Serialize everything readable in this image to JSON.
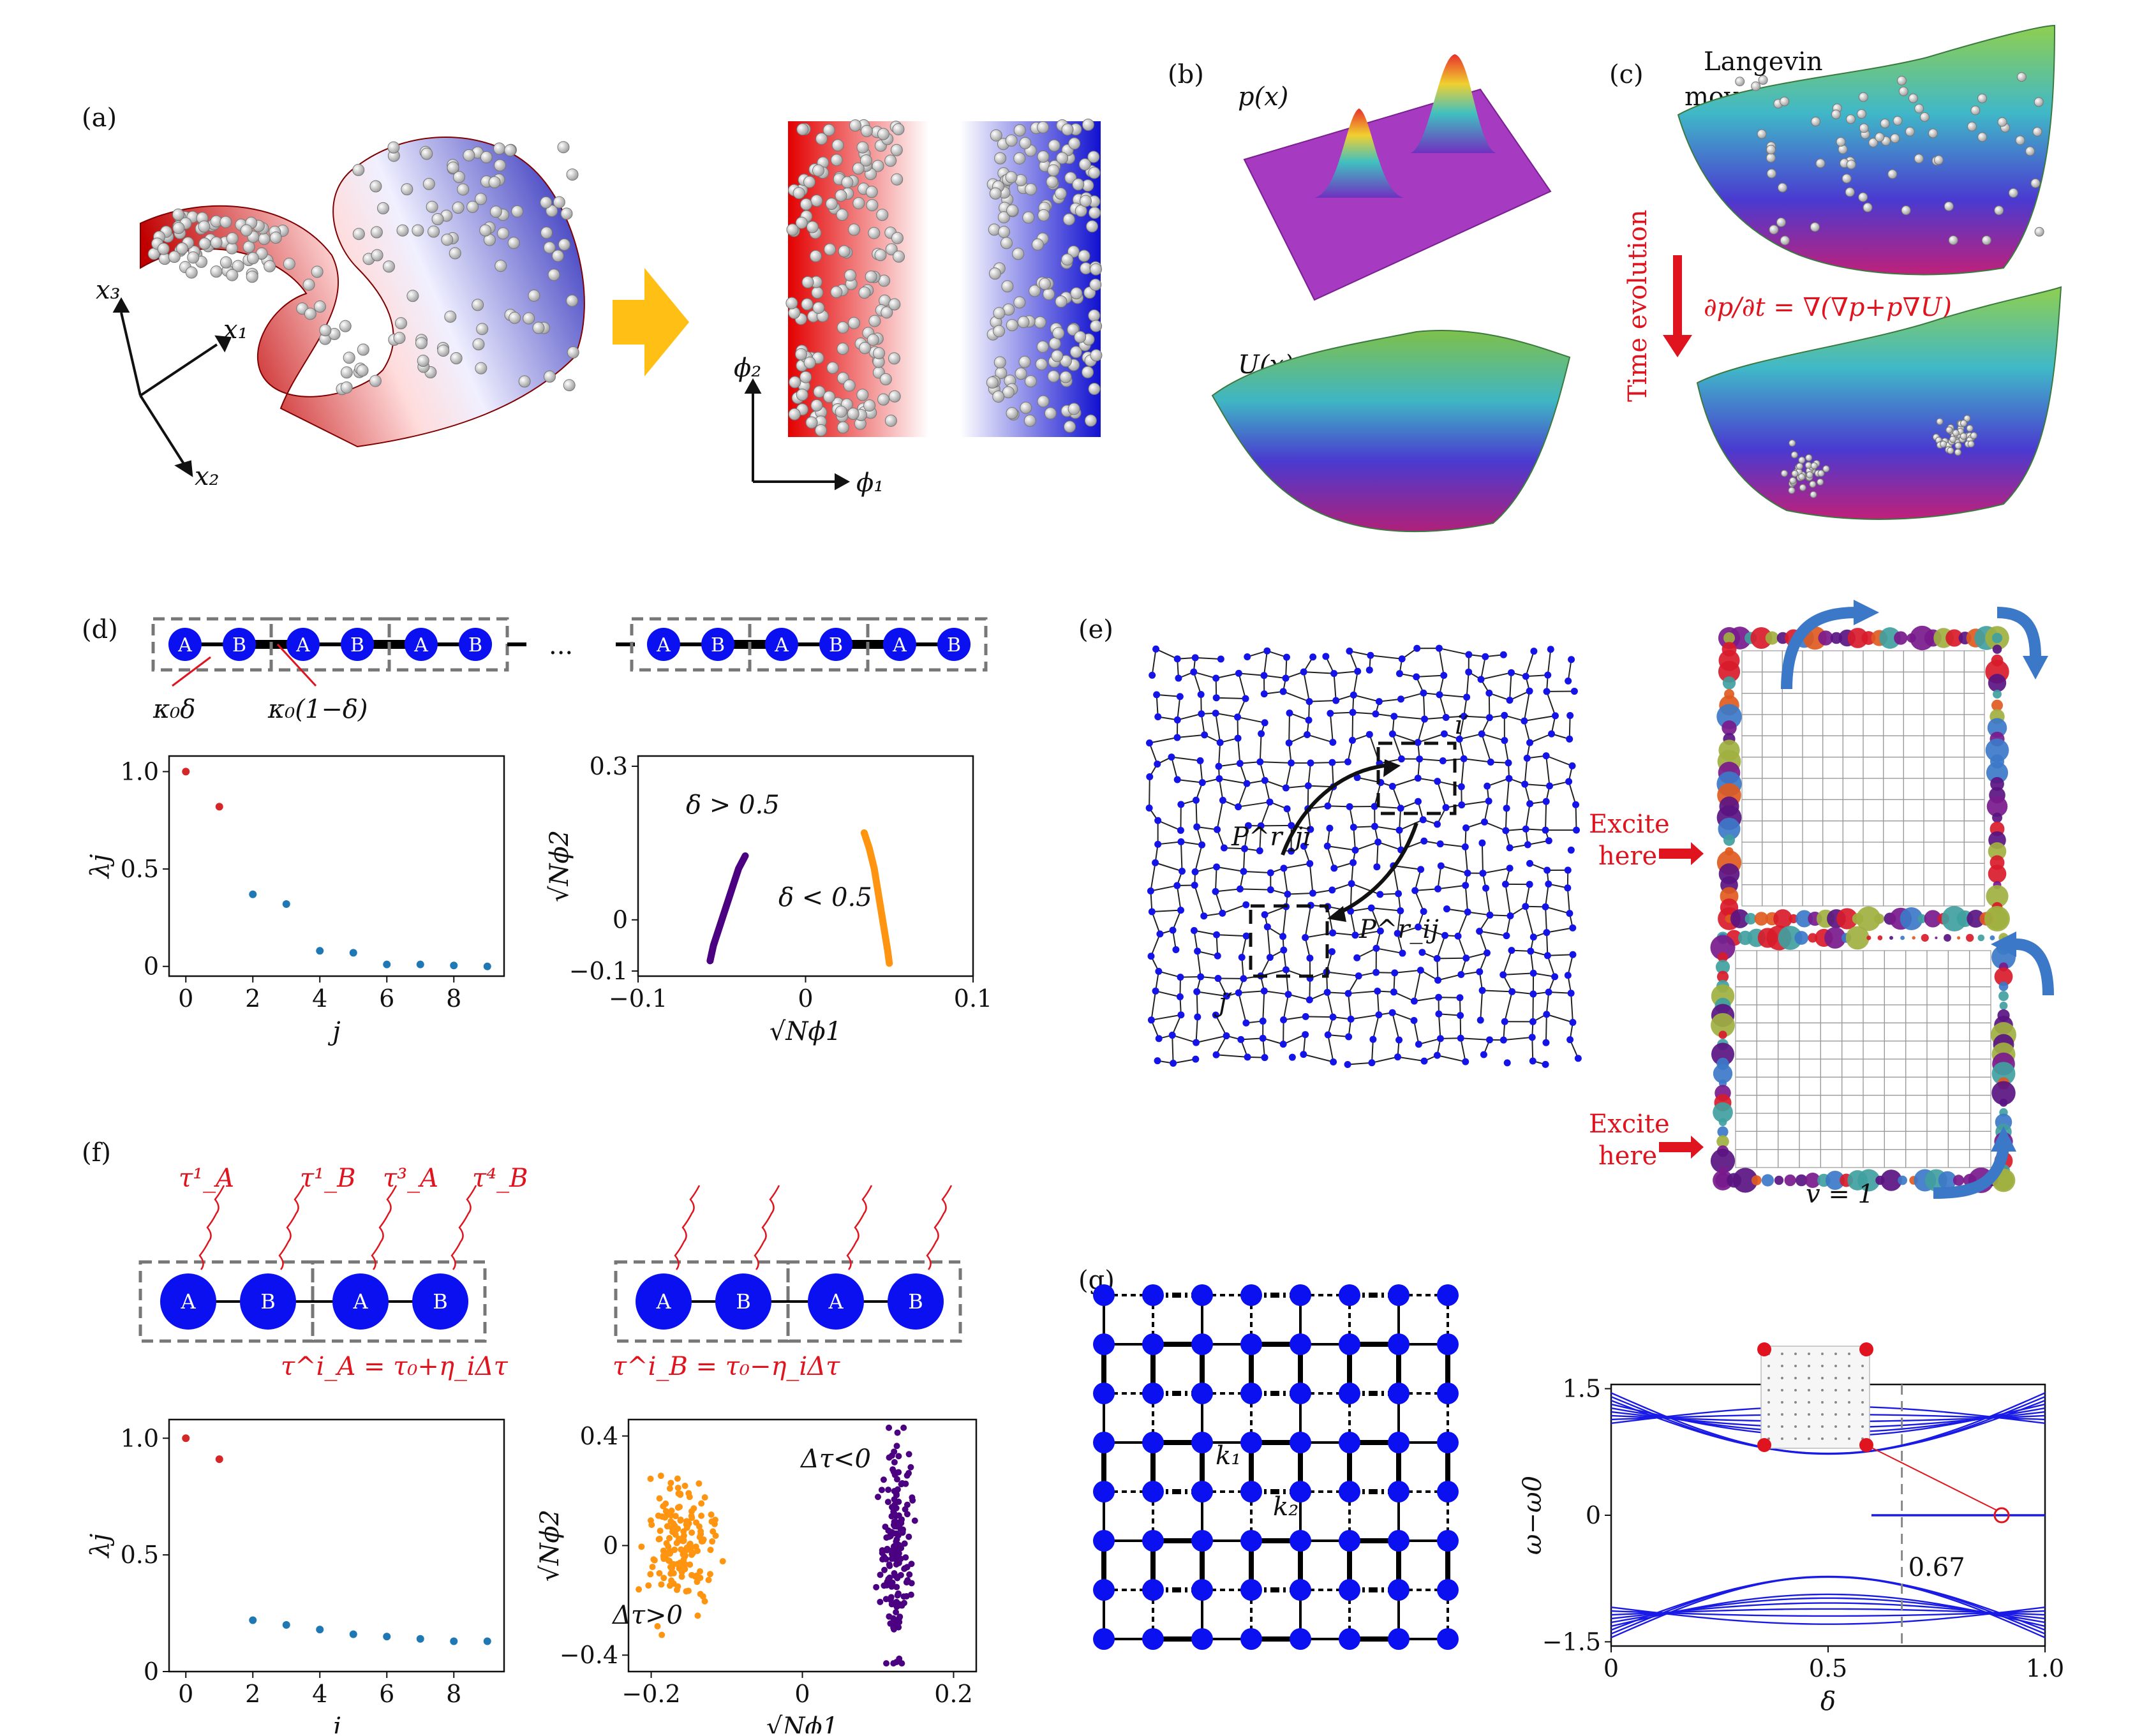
{
  "panels": {
    "a": {
      "label": "(a)",
      "axes": [
        "x₃",
        "x₁",
        "x₂"
      ],
      "embed_axes": [
        "ϕ₂",
        "ϕ₁"
      ]
    },
    "b": {
      "label": "(b)",
      "top": "p(x)",
      "bottom": "U(x)"
    },
    "c": {
      "label": "(c)",
      "title_line1": "Langevin",
      "title_line2": "movement",
      "arrow_label": "Time evolution",
      "equation": "∂p/∂t = ∇(∇p+p∇U)"
    },
    "d": {
      "label": "(d)",
      "dots": "...",
      "coupling1": "κ₀δ",
      "coupling2": "κ₀(1−δ)",
      "site_a": "A",
      "site_b": "B"
    },
    "e": {
      "label": "(e)",
      "excite1_l1": "Excite",
      "excite1_l2": "here",
      "excite2_l1": "Excite",
      "excite2_l2": "here",
      "v_label": "v = 1",
      "node_i": "i′",
      "node_j": "j′",
      "p_ji": "P^r_ji",
      "p_ij": "P^r_ij"
    },
    "f": {
      "label": "(f)",
      "tauA_eq": "τ^i_A = τ₀+η_iΔτ",
      "tauB_eq": "τ^i_B = τ₀−η_iΔτ",
      "taus": [
        "τ¹_A",
        "τ¹_B",
        "τ³_A",
        "τ⁴_B"
      ]
    },
    "g": {
      "label": "(g)",
      "k1": "k₁",
      "k2": "k₂"
    }
  },
  "chart_data": [
    {
      "id": "d-left",
      "type": "scatter",
      "xlabel": "j",
      "ylabel": "λj",
      "xlim": [
        -0.5,
        9.5
      ],
      "ylim": [
        -0.05,
        1.08
      ],
      "xticks": [
        "0",
        "2",
        "4",
        "6",
        "8"
      ],
      "yticks": [
        "0",
        "0.5",
        "1.0"
      ],
      "x": [
        0,
        1,
        2,
        3,
        4,
        5,
        6,
        7,
        8,
        9
      ],
      "values": [
        1.0,
        0.82,
        0.37,
        0.32,
        0.08,
        0.07,
        0.01,
        0.01,
        0.005,
        0.0
      ],
      "colors": [
        "#d62728",
        "#d62728",
        "#1f77b4",
        "#1f77b4",
        "#1f77b4",
        "#1f77b4",
        "#1f77b4",
        "#1f77b4",
        "#1f77b4",
        "#1f77b4"
      ]
    },
    {
      "id": "d-right",
      "type": "scatter",
      "xlabel": "√Nϕ1",
      "ylabel": "√Nϕ2",
      "xlim": [
        -0.1,
        0.1
      ],
      "ylim": [
        -0.11,
        0.32
      ],
      "xticks": [
        "−0.1",
        "0",
        "0.1"
      ],
      "yticks": [
        "−0.1",
        "0",
        "0.3"
      ],
      "series": [
        {
          "name": "δ > 0.5",
          "color": "#4b0082",
          "points": [
            [
              -0.057,
              -0.08
            ],
            [
              -0.055,
              -0.05
            ],
            [
              -0.052,
              -0.02
            ],
            [
              -0.049,
              0.01
            ],
            [
              -0.046,
              0.04
            ],
            [
              -0.043,
              0.07
            ],
            [
              -0.04,
              0.1
            ],
            [
              -0.036,
              0.125
            ]
          ]
        },
        {
          "name": "δ < 0.5",
          "color": "#ff9410",
          "points": [
            [
              0.035,
              0.17
            ],
            [
              0.038,
              0.14
            ],
            [
              0.041,
              0.1
            ],
            [
              0.043,
              0.06
            ],
            [
              0.045,
              0.02
            ],
            [
              0.047,
              -0.02
            ],
            [
              0.049,
              -0.06
            ],
            [
              0.05,
              -0.085
            ]
          ]
        }
      ]
    },
    {
      "id": "f-left",
      "type": "scatter",
      "xlabel": "j",
      "ylabel": "λj",
      "xlim": [
        -0.5,
        9.5
      ],
      "ylim": [
        0,
        1.08
      ],
      "xticks": [
        "0",
        "2",
        "4",
        "6",
        "8"
      ],
      "yticks": [
        "0",
        "0.5",
        "1.0"
      ],
      "x": [
        0,
        1,
        2,
        3,
        4,
        5,
        6,
        7,
        8,
        9
      ],
      "values": [
        1.0,
        0.91,
        0.22,
        0.2,
        0.18,
        0.16,
        0.15,
        0.14,
        0.13,
        0.13
      ],
      "colors": [
        "#d62728",
        "#d62728",
        "#1f77b4",
        "#1f77b4",
        "#1f77b4",
        "#1f77b4",
        "#1f77b4",
        "#1f77b4",
        "#1f77b4",
        "#1f77b4"
      ]
    },
    {
      "id": "f-right",
      "type": "scatter",
      "xlabel": "√Nϕ1",
      "ylabel": "√Nϕ2",
      "xlim": [
        -0.23,
        0.23
      ],
      "ylim": [
        -0.46,
        0.46
      ],
      "xticks": [
        "−0.2",
        "0",
        "0.2"
      ],
      "yticks": [
        "−0.4",
        "0",
        "0.4"
      ],
      "series": [
        {
          "name": "Δτ>0",
          "color": "#ff9410",
          "center": [
            -0.16,
            0.0
          ],
          "spread": [
            0.022,
            0.1
          ]
        },
        {
          "name": "Δτ<0",
          "color": "#4b0082",
          "center": [
            0.125,
            0.0
          ],
          "spread": [
            0.01,
            0.18
          ]
        }
      ]
    },
    {
      "id": "g-right",
      "type": "line",
      "xlabel": "δ",
      "ylabel": "ω−ω0",
      "xlim": [
        0,
        1.0
      ],
      "ylim": [
        -1.55,
        1.55
      ],
      "xticks": [
        "0",
        "0.5",
        "1.0"
      ],
      "yticks": [
        "−1.5",
        "0",
        "1.5"
      ],
      "annotation": "0.67",
      "marker_x": 0.67
    }
  ]
}
